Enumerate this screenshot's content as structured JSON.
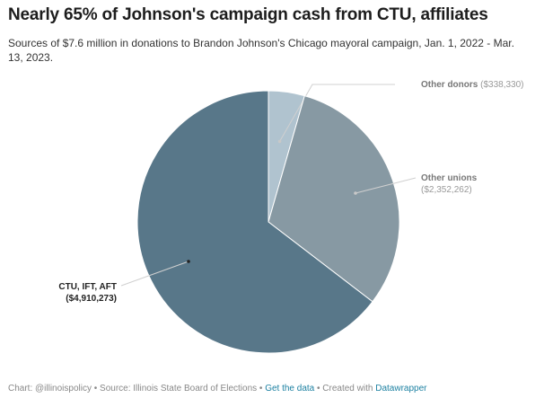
{
  "header": {
    "title": "Nearly 65% of Johnson's campaign cash from CTU, affiliates",
    "subtitle": "Sources of $7.6 million in donations to Brandon Johnson's Chicago mayoral campaign, Jan. 1, 2022 - Mar. 13, 2023."
  },
  "chart_data": {
    "type": "pie",
    "slices": [
      {
        "name": "Other donors",
        "value_label": "($338,330)",
        "value": 338330,
        "color": "#b0c3cf"
      },
      {
        "name": "Other unions",
        "value_label": "($2,352,262)",
        "value": 2352262,
        "color": "#8799a3"
      },
      {
        "name": "CTU, IFT, AFT",
        "value_label": "($4,910,273)",
        "value": 4910273,
        "color": "#587789"
      }
    ]
  },
  "footer": {
    "chart_credit": "Chart: @illinoispolicy",
    "sep1": " • ",
    "source": "Source: Illinois State Board of Elections",
    "sep2": " • ",
    "get_data": "Get the data",
    "sep3": " • ",
    "created_with": "Created with ",
    "datawrapper": "Datawrapper"
  }
}
